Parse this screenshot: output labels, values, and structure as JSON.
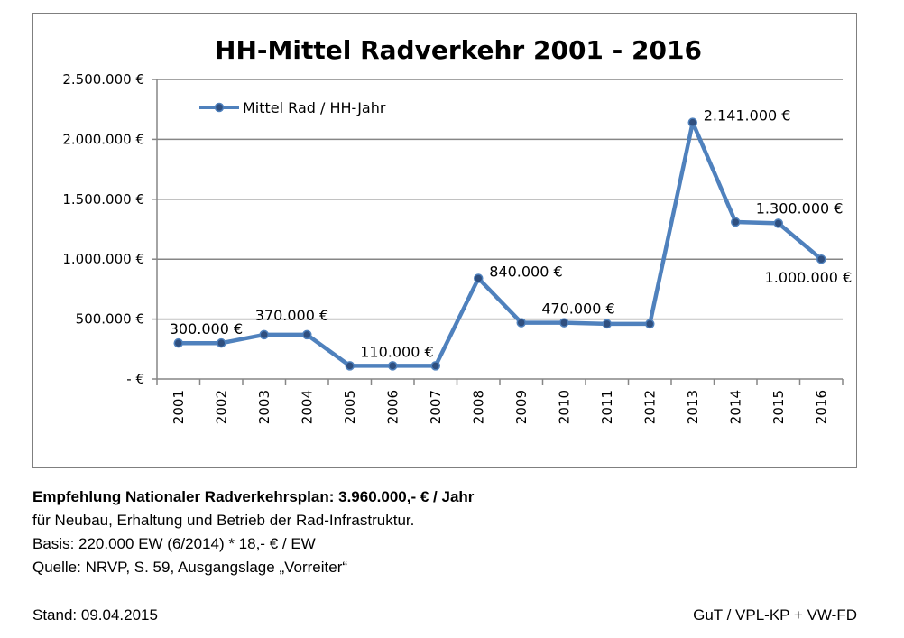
{
  "chart_data": {
    "type": "line",
    "title": "HH-Mittel Radverkehr 2001 - 2016",
    "categories": [
      "2001",
      "2002",
      "2003",
      "2004",
      "2005",
      "2006",
      "2007",
      "2008",
      "2009",
      "2010",
      "2011",
      "2012",
      "2013",
      "2014",
      "2015",
      "2016"
    ],
    "series": [
      {
        "name": "Mittel Rad / HH-Jahr",
        "values": [
          300000,
          300000,
          370000,
          370000,
          110000,
          110000,
          110000,
          840000,
          470000,
          470000,
          460000,
          460000,
          2141000,
          1310000,
          1300000,
          1000000
        ],
        "color": "#4f81bd"
      }
    ],
    "ylim": [
      0,
      2500000
    ],
    "yticks": [
      {
        "value": 0,
        "label": "-   €"
      },
      {
        "value": 500000,
        "label": "500.000 €"
      },
      {
        "value": 1000000,
        "label": "1.000.000 €"
      },
      {
        "value": 1500000,
        "label": "1.500.000 €"
      },
      {
        "value": 2000000,
        "label": "2.000.000 €"
      },
      {
        "value": 2500000,
        "label": "2.500.000 €"
      }
    ],
    "data_labels": [
      {
        "index": 0,
        "text": "300.000 €"
      },
      {
        "index": 2,
        "text": "370.000 €"
      },
      {
        "index": 5,
        "text": "110.000 €"
      },
      {
        "index": 7,
        "text": "840.000 €"
      },
      {
        "index": 9,
        "text": "470.000 €"
      },
      {
        "index": 12,
        "text": "2.141.000 €"
      },
      {
        "index": 14,
        "text": "1.300.000 €"
      },
      {
        "index": 15,
        "text": "1.000.000 €"
      }
    ],
    "grid": true,
    "legend_position": "top-left"
  },
  "footer": {
    "recommendation": "Empfehlung Nationaler Radverkehrsplan: 3.960.000,- € / Jahr",
    "purpose": "für Neubau, Erhaltung und Betrieb der Rad-Infrastruktur.",
    "basis": "Basis: 220.000 EW (6/2014) * 18,- € / EW",
    "source": "Quelle: NRVP, S. 59, Ausgangslage „Vorreiter“",
    "stand": "Stand: 09.04.2015",
    "credit": "GuT / VPL-KP + VW-FD"
  }
}
